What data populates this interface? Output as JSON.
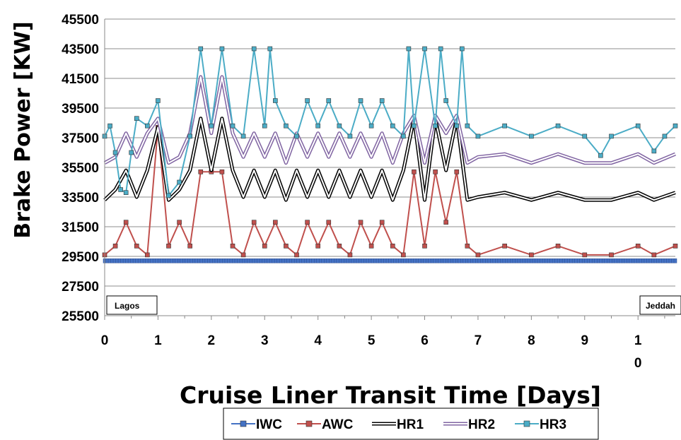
{
  "chart_data": {
    "type": "line",
    "xlabel": "Cruise Liner Transit Time [Days]",
    "ylabel": "Brake Power [KW]",
    "ylim": [
      25500,
      45500
    ],
    "yticks": [
      "25500",
      "27500",
      "29500",
      "31500",
      "33500",
      "35500",
      "37500",
      "39500",
      "41500",
      "43500",
      "45500"
    ],
    "xlim": [
      0,
      10.7
    ],
    "xticks": [
      {
        "value": 0,
        "label": "0"
      },
      {
        "value": 1,
        "label": "1"
      },
      {
        "value": 2,
        "label": "2"
      },
      {
        "value": 3,
        "label": "3"
      },
      {
        "value": 4,
        "label": "4"
      },
      {
        "value": 5,
        "label": "5"
      },
      {
        "value": 6,
        "label": "6"
      },
      {
        "value": 7,
        "label": "7"
      },
      {
        "value": 8,
        "label": "8"
      },
      {
        "value": 9,
        "label": "9"
      },
      {
        "value": 10,
        "label": "1\n0"
      }
    ],
    "grid": "horizontal",
    "legend_position": "bottom",
    "annotations": [
      {
        "text": "Lagos",
        "x": 0,
        "y": 25500
      },
      {
        "text": "Jeddah",
        "x": 10.7,
        "y": 25500
      }
    ],
    "series": [
      {
        "name": "IWC",
        "color": "#4472C4",
        "marker": "circle",
        "x": [
          0,
          10.7
        ],
        "y": [
          29200,
          29200
        ]
      },
      {
        "name": "AWC",
        "color": "#C0504D",
        "marker": "square",
        "x": [
          0,
          0.2,
          0.4,
          0.6,
          0.8,
          1.0,
          1.2,
          1.4,
          1.6,
          1.8,
          2.0,
          2.2,
          2.4,
          2.6,
          2.8,
          3.0,
          3.2,
          3.4,
          3.6,
          3.8,
          4.0,
          4.2,
          4.4,
          4.6,
          4.8,
          5.0,
          5.2,
          5.4,
          5.6,
          5.8,
          6.0,
          6.2,
          6.4,
          6.6,
          6.8,
          7.0,
          7.5,
          8.0,
          8.5,
          9.0,
          9.5,
          10.0,
          10.3,
          10.7
        ],
        "y": [
          29600,
          30200,
          31800,
          30200,
          29600,
          38200,
          30200,
          31800,
          30200,
          35200,
          35200,
          35200,
          30200,
          29600,
          31800,
          30200,
          31800,
          30200,
          29600,
          31800,
          30200,
          31800,
          30200,
          29600,
          31800,
          30200,
          31800,
          30200,
          29600,
          35200,
          30200,
          35200,
          31800,
          35200,
          30200,
          29600,
          30200,
          29600,
          30200,
          29600,
          29600,
          30200,
          29600,
          30200
        ]
      },
      {
        "name": "HR1",
        "color": "#000000",
        "marker": "none",
        "x": [
          0,
          0.2,
          0.4,
          0.6,
          0.8,
          1.0,
          1.2,
          1.4,
          1.6,
          1.8,
          2.0,
          2.2,
          2.4,
          2.6,
          2.8,
          3.0,
          3.2,
          3.4,
          3.6,
          3.8,
          4.0,
          4.2,
          4.4,
          4.6,
          4.8,
          5.0,
          5.2,
          5.4,
          5.6,
          5.8,
          6.0,
          6.2,
          6.4,
          6.6,
          6.8,
          7.0,
          7.5,
          8.0,
          8.5,
          9.0,
          9.5,
          10.0,
          10.3,
          10.7
        ],
        "y": [
          33300,
          34000,
          35300,
          33500,
          35300,
          38200,
          33300,
          34000,
          35300,
          38800,
          35300,
          38800,
          35300,
          33500,
          35300,
          33500,
          35300,
          33300,
          35300,
          33500,
          35300,
          33500,
          35300,
          33500,
          35300,
          33500,
          35300,
          33300,
          35300,
          38800,
          33300,
          38800,
          35300,
          38800,
          33300,
          33500,
          33800,
          33300,
          33800,
          33300,
          33300,
          33800,
          33300,
          33800
        ]
      },
      {
        "name": "HR2",
        "color": "#8064A2",
        "marker": "none",
        "x": [
          0,
          0.2,
          0.4,
          0.6,
          0.8,
          1.0,
          1.2,
          1.4,
          1.6,
          1.8,
          2.0,
          2.2,
          2.4,
          2.6,
          2.8,
          3.0,
          3.2,
          3.4,
          3.6,
          3.8,
          4.0,
          4.2,
          4.4,
          4.6,
          4.8,
          5.0,
          5.2,
          5.4,
          5.6,
          5.8,
          6.0,
          6.2,
          6.4,
          6.6,
          6.8,
          7.0,
          7.5,
          8.0,
          8.5,
          9.0,
          9.5,
          10.0,
          10.3,
          10.7
        ],
        "y": [
          35800,
          36200,
          37800,
          36200,
          37800,
          38800,
          35800,
          36200,
          37800,
          41600,
          37800,
          41600,
          37800,
          36200,
          37800,
          36200,
          37800,
          35800,
          37800,
          36200,
          37800,
          36200,
          37800,
          36200,
          37800,
          36200,
          37800,
          35800,
          37800,
          39000,
          35800,
          39000,
          37800,
          39000,
          35800,
          36200,
          36400,
          35800,
          36400,
          35800,
          35800,
          36400,
          35800,
          36400
        ]
      },
      {
        "name": "HR3",
        "color": "#4BACC6",
        "marker": "square",
        "x": [
          0,
          0.1,
          0.2,
          0.3,
          0.4,
          0.5,
          0.6,
          0.8,
          1.0,
          1.2,
          1.4,
          1.6,
          1.8,
          2.0,
          2.2,
          2.4,
          2.6,
          2.8,
          3.0,
          3.1,
          3.2,
          3.4,
          3.6,
          3.8,
          4.0,
          4.2,
          4.4,
          4.6,
          4.8,
          5.0,
          5.2,
          5.4,
          5.6,
          5.7,
          5.8,
          6.0,
          6.2,
          6.3,
          6.4,
          6.6,
          6.7,
          6.8,
          7.0,
          7.5,
          8.0,
          8.5,
          9.0,
          9.3,
          9.5,
          10.0,
          10.3,
          10.5,
          10.7
        ],
        "y": [
          37600,
          38300,
          36500,
          34000,
          33800,
          36500,
          38800,
          38300,
          40000,
          33600,
          34500,
          37600,
          43500,
          38300,
          43500,
          38300,
          37600,
          43500,
          38300,
          43500,
          40000,
          38300,
          37600,
          40000,
          38300,
          40000,
          38300,
          37600,
          40000,
          38300,
          40000,
          38300,
          37600,
          43500,
          38300,
          43500,
          38300,
          43500,
          40000,
          38300,
          43500,
          38300,
          37600,
          38300,
          37600,
          38300,
          37600,
          36300,
          37600,
          38300,
          36600,
          37600,
          38300
        ]
      }
    ]
  }
}
